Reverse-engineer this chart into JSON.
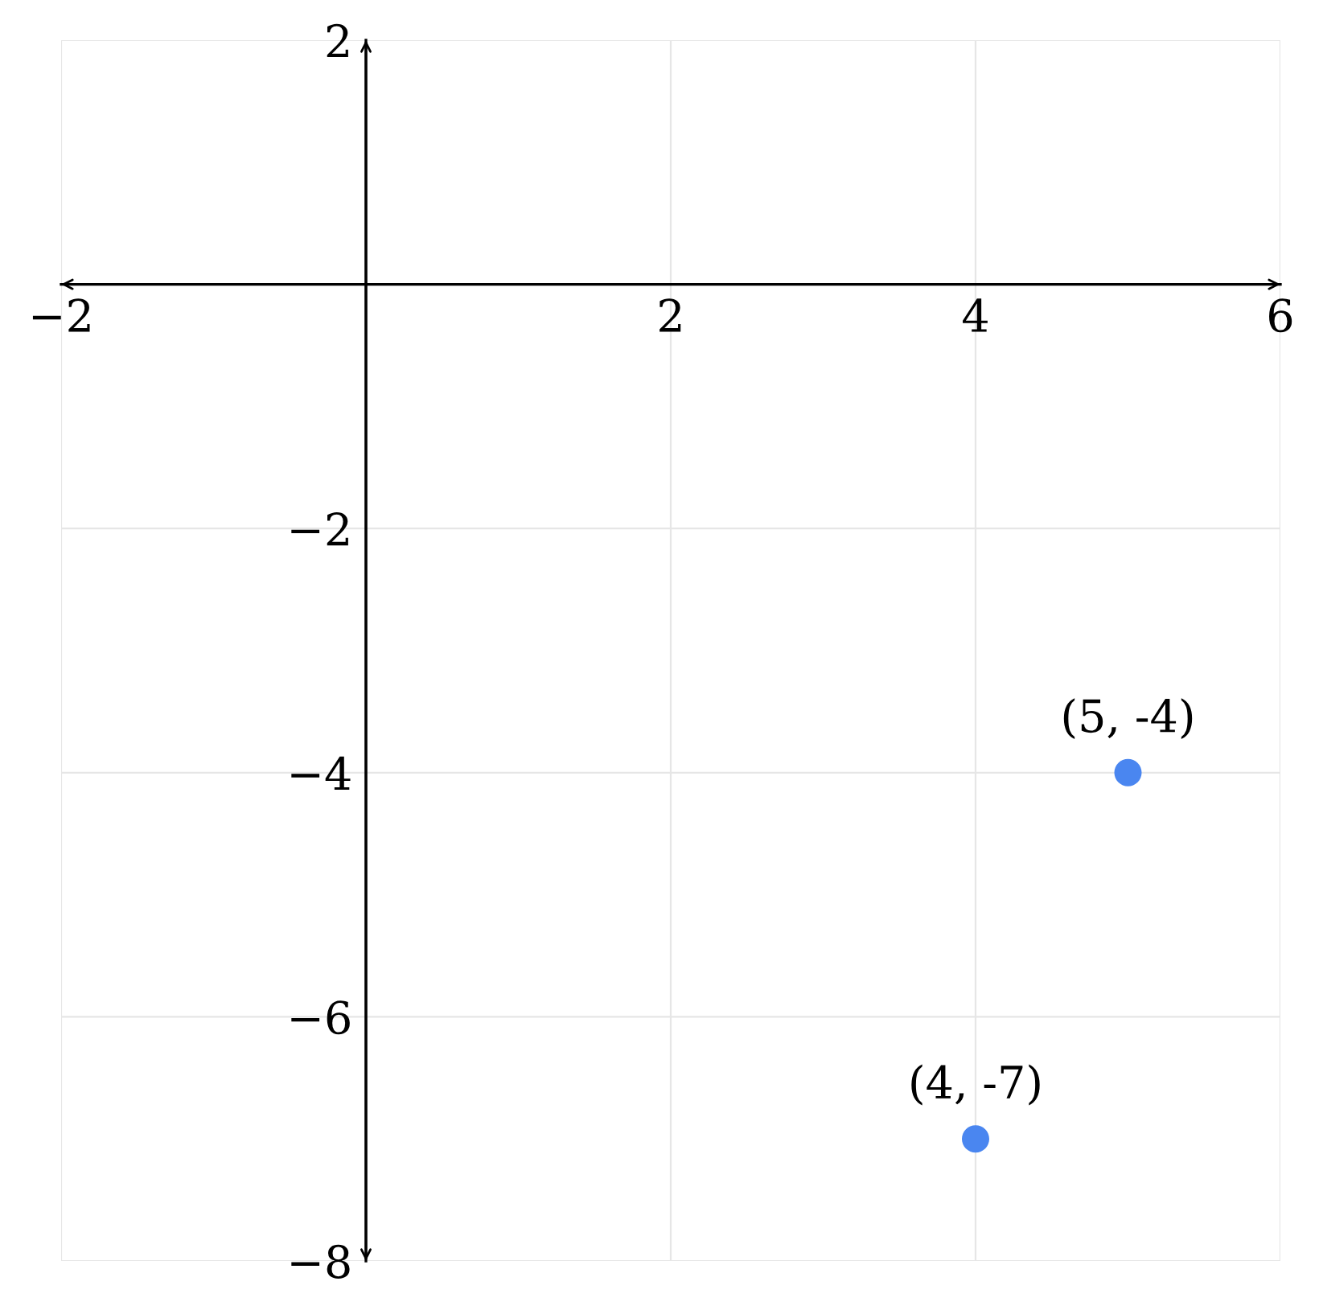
{
  "chart_data": {
    "type": "scatter",
    "x": [
      5,
      4
    ],
    "values": [
      -4,
      -7
    ],
    "color": "#4a86f0",
    "marker": "circle",
    "xlim": [
      -2,
      6
    ],
    "ylim": [
      -8,
      2
    ],
    "xticks": [
      {
        "value": -2,
        "label": "−2"
      },
      2,
      4,
      6
    ],
    "yticks": [
      2,
      {
        "value": -2,
        "label": "−2"
      },
      {
        "value": -4,
        "label": "−4"
      },
      {
        "value": -6,
        "label": "−6"
      },
      {
        "value": -8,
        "label": "−8"
      }
    ],
    "grid": true,
    "annotations": [
      {
        "text": "(5, -4)",
        "x": 5,
        "y": -4
      },
      {
        "text": "(4, -7)",
        "x": 4,
        "y": -7
      }
    ]
  }
}
